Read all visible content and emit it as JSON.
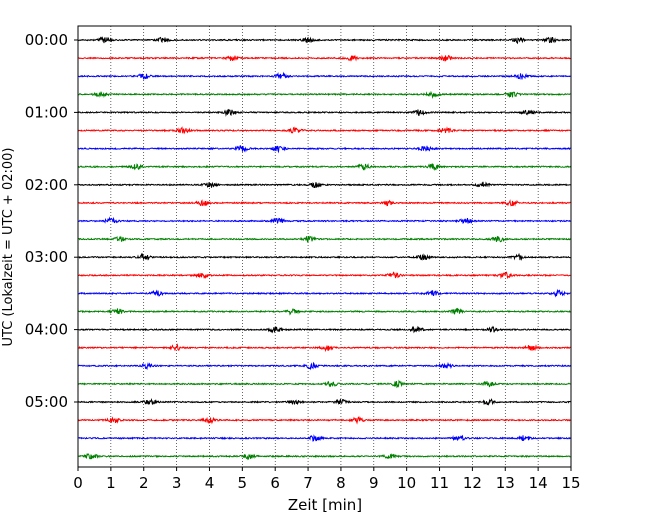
{
  "chart_data": {
    "type": "line",
    "title": "",
    "xlabel": "Zeit  [min]",
    "ylabel": "UTC (Lokalzeit = UTC + 02:00)",
    "xlim": [
      0,
      15
    ],
    "x_ticks": [
      0,
      1,
      2,
      3,
      4,
      5,
      6,
      7,
      8,
      9,
      10,
      11,
      12,
      13,
      14,
      15
    ],
    "y_ticks": [
      "00:00",
      "01:00",
      "02:00",
      "03:00",
      "04:00",
      "05:00"
    ],
    "grid": "vertical-dotted",
    "trace_interval_minutes": 15,
    "trace_colors": [
      "#000000",
      "#ff0000",
      "#0000ff",
      "#008000"
    ],
    "series": [
      {
        "start": "00:00",
        "color": "#000000",
        "bursts": [
          0.8,
          2.6,
          7.0,
          13.4,
          14.4
        ]
      },
      {
        "start": "00:15",
        "color": "#ff0000",
        "bursts": [
          4.7,
          8.3,
          11.2
        ]
      },
      {
        "start": "00:30",
        "color": "#0000ff",
        "bursts": [
          2.0,
          6.2,
          13.5
        ]
      },
      {
        "start": "00:45",
        "color": "#008000",
        "bursts": [
          0.7,
          10.8,
          13.2
        ]
      },
      {
        "start": "01:00",
        "color": "#000000",
        "bursts": [
          4.6,
          10.4,
          13.7
        ]
      },
      {
        "start": "01:15",
        "color": "#ff0000",
        "bursts": [
          3.2,
          6.6,
          11.2
        ]
      },
      {
        "start": "01:30",
        "color": "#0000ff",
        "bursts": [
          5.0,
          6.1,
          10.6
        ]
      },
      {
        "start": "01:45",
        "color": "#008000",
        "bursts": [
          1.8,
          8.7,
          10.8
        ]
      },
      {
        "start": "02:00",
        "color": "#000000",
        "bursts": [
          4.0,
          7.2,
          12.3
        ]
      },
      {
        "start": "02:15",
        "color": "#ff0000",
        "bursts": [
          3.8,
          9.4,
          13.2
        ]
      },
      {
        "start": "02:30",
        "color": "#0000ff",
        "bursts": [
          1.0,
          6.1,
          11.8
        ]
      },
      {
        "start": "02:45",
        "color": "#008000",
        "bursts": [
          1.3,
          7.0,
          12.8
        ]
      },
      {
        "start": "03:00",
        "color": "#000000",
        "bursts": [
          2.0,
          10.5,
          13.4
        ]
      },
      {
        "start": "03:15",
        "color": "#ff0000",
        "bursts": [
          3.8,
          9.6,
          13.0
        ]
      },
      {
        "start": "03:30",
        "color": "#0000ff",
        "bursts": [
          2.4,
          10.8,
          14.6
        ]
      },
      {
        "start": "03:45",
        "color": "#008000",
        "bursts": [
          1.2,
          6.5,
          11.5
        ]
      },
      {
        "start": "04:00",
        "color": "#000000",
        "bursts": [
          6.0,
          10.3,
          12.6
        ]
      },
      {
        "start": "04:15",
        "color": "#ff0000",
        "bursts": [
          3.0,
          7.6,
          13.8
        ]
      },
      {
        "start": "04:30",
        "color": "#0000ff",
        "bursts": [
          2.1,
          7.1,
          11.2
        ]
      },
      {
        "start": "04:45",
        "color": "#008000",
        "bursts": [
          7.7,
          9.7,
          12.5
        ]
      },
      {
        "start": "05:00",
        "color": "#000000",
        "bursts": [
          2.2,
          6.6,
          8.0,
          12.5
        ]
      },
      {
        "start": "05:15",
        "color": "#ff0000",
        "bursts": [
          1.1,
          4.0,
          8.5
        ]
      },
      {
        "start": "05:30",
        "color": "#0000ff",
        "bursts": [
          7.2,
          11.6,
          13.6
        ]
      },
      {
        "start": "05:45",
        "color": "#008000",
        "bursts": [
          0.4,
          5.2,
          9.5
        ]
      }
    ]
  }
}
